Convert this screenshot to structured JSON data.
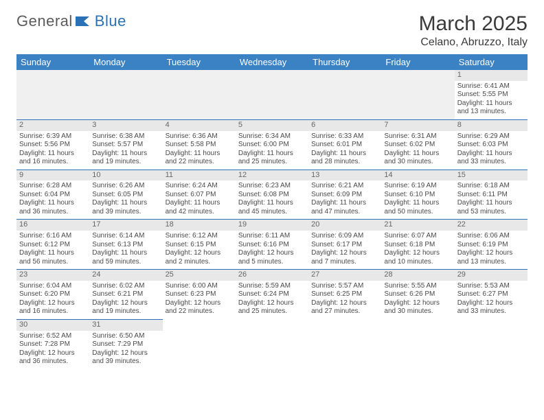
{
  "brand": {
    "name_part1": "General",
    "name_part2": "Blue"
  },
  "title": "March 2025",
  "location": "Celano, Abruzzo, Italy",
  "colors": {
    "header_bg": "#3b82c4",
    "header_text": "#ffffff",
    "border": "#2a72b5",
    "daynum_bg": "#e8e8e8",
    "blank_bg": "#f0f0f0",
    "text": "#4a4a4a",
    "title_text": "#3a3a3a"
  },
  "day_headers": [
    "Sunday",
    "Monday",
    "Tuesday",
    "Wednesday",
    "Thursday",
    "Friday",
    "Saturday"
  ],
  "weeks": [
    [
      {
        "blank": true
      },
      {
        "blank": true
      },
      {
        "blank": true
      },
      {
        "blank": true
      },
      {
        "blank": true
      },
      {
        "blank": true
      },
      {
        "day": "1",
        "sunrise": "6:41 AM",
        "sunset": "5:55 PM",
        "daylight": "11 hours and 13 minutes."
      }
    ],
    [
      {
        "day": "2",
        "sunrise": "6:39 AM",
        "sunset": "5:56 PM",
        "daylight": "11 hours and 16 minutes."
      },
      {
        "day": "3",
        "sunrise": "6:38 AM",
        "sunset": "5:57 PM",
        "daylight": "11 hours and 19 minutes."
      },
      {
        "day": "4",
        "sunrise": "6:36 AM",
        "sunset": "5:58 PM",
        "daylight": "11 hours and 22 minutes."
      },
      {
        "day": "5",
        "sunrise": "6:34 AM",
        "sunset": "6:00 PM",
        "daylight": "11 hours and 25 minutes."
      },
      {
        "day": "6",
        "sunrise": "6:33 AM",
        "sunset": "6:01 PM",
        "daylight": "11 hours and 28 minutes."
      },
      {
        "day": "7",
        "sunrise": "6:31 AM",
        "sunset": "6:02 PM",
        "daylight": "11 hours and 30 minutes."
      },
      {
        "day": "8",
        "sunrise": "6:29 AM",
        "sunset": "6:03 PM",
        "daylight": "11 hours and 33 minutes."
      }
    ],
    [
      {
        "day": "9",
        "sunrise": "6:28 AM",
        "sunset": "6:04 PM",
        "daylight": "11 hours and 36 minutes."
      },
      {
        "day": "10",
        "sunrise": "6:26 AM",
        "sunset": "6:05 PM",
        "daylight": "11 hours and 39 minutes."
      },
      {
        "day": "11",
        "sunrise": "6:24 AM",
        "sunset": "6:07 PM",
        "daylight": "11 hours and 42 minutes."
      },
      {
        "day": "12",
        "sunrise": "6:23 AM",
        "sunset": "6:08 PM",
        "daylight": "11 hours and 45 minutes."
      },
      {
        "day": "13",
        "sunrise": "6:21 AM",
        "sunset": "6:09 PM",
        "daylight": "11 hours and 47 minutes."
      },
      {
        "day": "14",
        "sunrise": "6:19 AM",
        "sunset": "6:10 PM",
        "daylight": "11 hours and 50 minutes."
      },
      {
        "day": "15",
        "sunrise": "6:18 AM",
        "sunset": "6:11 PM",
        "daylight": "11 hours and 53 minutes."
      }
    ],
    [
      {
        "day": "16",
        "sunrise": "6:16 AM",
        "sunset": "6:12 PM",
        "daylight": "11 hours and 56 minutes."
      },
      {
        "day": "17",
        "sunrise": "6:14 AM",
        "sunset": "6:13 PM",
        "daylight": "11 hours and 59 minutes."
      },
      {
        "day": "18",
        "sunrise": "6:12 AM",
        "sunset": "6:15 PM",
        "daylight": "12 hours and 2 minutes."
      },
      {
        "day": "19",
        "sunrise": "6:11 AM",
        "sunset": "6:16 PM",
        "daylight": "12 hours and 5 minutes."
      },
      {
        "day": "20",
        "sunrise": "6:09 AM",
        "sunset": "6:17 PM",
        "daylight": "12 hours and 7 minutes."
      },
      {
        "day": "21",
        "sunrise": "6:07 AM",
        "sunset": "6:18 PM",
        "daylight": "12 hours and 10 minutes."
      },
      {
        "day": "22",
        "sunrise": "6:06 AM",
        "sunset": "6:19 PM",
        "daylight": "12 hours and 13 minutes."
      }
    ],
    [
      {
        "day": "23",
        "sunrise": "6:04 AM",
        "sunset": "6:20 PM",
        "daylight": "12 hours and 16 minutes."
      },
      {
        "day": "24",
        "sunrise": "6:02 AM",
        "sunset": "6:21 PM",
        "daylight": "12 hours and 19 minutes."
      },
      {
        "day": "25",
        "sunrise": "6:00 AM",
        "sunset": "6:23 PM",
        "daylight": "12 hours and 22 minutes."
      },
      {
        "day": "26",
        "sunrise": "5:59 AM",
        "sunset": "6:24 PM",
        "daylight": "12 hours and 25 minutes."
      },
      {
        "day": "27",
        "sunrise": "5:57 AM",
        "sunset": "6:25 PM",
        "daylight": "12 hours and 27 minutes."
      },
      {
        "day": "28",
        "sunrise": "5:55 AM",
        "sunset": "6:26 PM",
        "daylight": "12 hours and 30 minutes."
      },
      {
        "day": "29",
        "sunrise": "5:53 AM",
        "sunset": "6:27 PM",
        "daylight": "12 hours and 33 minutes."
      }
    ],
    [
      {
        "day": "30",
        "sunrise": "6:52 AM",
        "sunset": "7:28 PM",
        "daylight": "12 hours and 36 minutes."
      },
      {
        "day": "31",
        "sunrise": "6:50 AM",
        "sunset": "7:29 PM",
        "daylight": "12 hours and 39 minutes."
      },
      {
        "blank": true
      },
      {
        "blank": true
      },
      {
        "blank": true
      },
      {
        "blank": true
      },
      {
        "blank": true
      }
    ]
  ],
  "labels": {
    "sunrise": "Sunrise:",
    "sunset": "Sunset:",
    "daylight": "Daylight:"
  }
}
